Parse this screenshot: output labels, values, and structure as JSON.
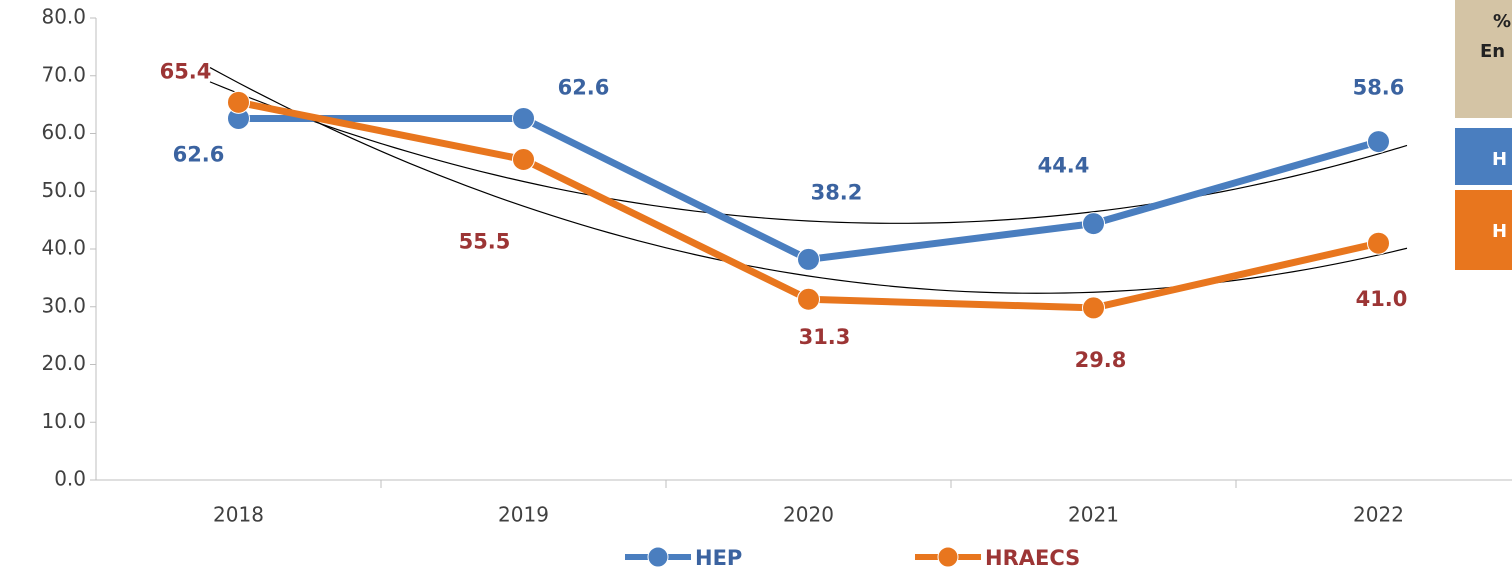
{
  "chart_data": {
    "type": "line",
    "categories": [
      "2018",
      "2019",
      "2020",
      "2021",
      "2022"
    ],
    "series": [
      {
        "name": "HEP",
        "color": "#4a7ebf",
        "label_color": "#3b63a0",
        "values": [
          62.6,
          62.6,
          38.2,
          44.4,
          58.6
        ]
      },
      {
        "name": "HRAECS",
        "color": "#e8761e",
        "label_color": "#9c3535",
        "values": [
          65.4,
          55.5,
          31.3,
          29.8,
          41.0
        ],
        "value_labels": [
          "65.4",
          "55.5",
          "31.3",
          "29.8",
          "41.0"
        ]
      }
    ],
    "ylim": [
      0,
      80
    ],
    "yticks": [
      {
        "value": 0,
        "label": "0.0"
      },
      {
        "value": 10,
        "label": "10.0"
      },
      {
        "value": 20,
        "label": "20.0"
      },
      {
        "value": 30,
        "label": "30.0"
      },
      {
        "value": 40,
        "label": "40.0"
      },
      {
        "value": 50,
        "label": "50.0"
      },
      {
        "value": 60,
        "label": "60.0"
      },
      {
        "value": 70,
        "label": "70.0"
      },
      {
        "value": 80,
        "label": "80.0"
      }
    ],
    "trendline": "polynomial-2",
    "legend": "bottom",
    "annotations": [
      "%",
      "En",
      "H",
      "H"
    ]
  }
}
